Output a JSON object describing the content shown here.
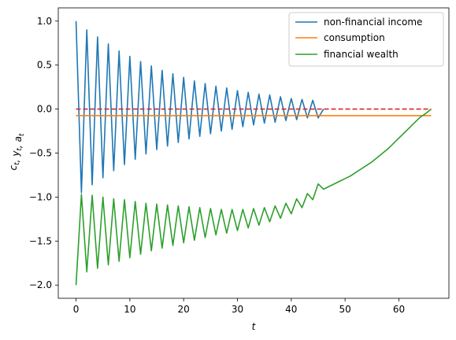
{
  "chart_data": {
    "type": "line",
    "xlabel": "t",
    "ylabel": "c_t, y_t, a_t",
    "xlim": [
      -3.3,
      69.3
    ],
    "ylim": [
      -2.15,
      1.15
    ],
    "x_ticks": [
      0,
      10,
      20,
      30,
      40,
      50,
      60
    ],
    "y_ticks": [
      1.0,
      0.5,
      0.0,
      -0.5,
      -1.0,
      -1.5,
      -2.0
    ],
    "y_tick_labels": [
      "1.0",
      "0.5",
      "0.0",
      "−0.5",
      "−1.0",
      "−1.5",
      "−2.0"
    ],
    "grid": false,
    "legend_position": "top-right",
    "series": [
      {
        "name": "non-financial income",
        "color": "#1f77b4",
        "x": [
          0,
          1,
          2,
          3,
          4,
          5,
          6,
          7,
          8,
          9,
          10,
          11,
          12,
          13,
          14,
          15,
          16,
          17,
          18,
          19,
          20,
          21,
          22,
          23,
          24,
          25,
          26,
          27,
          28,
          29,
          30,
          31,
          32,
          33,
          34,
          35,
          36,
          37,
          38,
          39,
          40,
          41,
          42,
          43,
          44,
          45,
          46
        ],
        "y": [
          1.0,
          -0.95,
          0.9,
          -0.86,
          0.82,
          -0.78,
          0.74,
          -0.7,
          0.66,
          -0.63,
          0.6,
          -0.57,
          0.54,
          -0.51,
          0.49,
          -0.46,
          0.44,
          -0.42,
          0.4,
          -0.38,
          0.36,
          -0.34,
          0.32,
          -0.31,
          0.29,
          -0.28,
          0.26,
          -0.25,
          0.24,
          -0.23,
          0.21,
          -0.2,
          0.19,
          -0.18,
          0.17,
          -0.16,
          0.16,
          -0.15,
          0.14,
          -0.13,
          0.12,
          -0.12,
          0.11,
          -0.1,
          0.1,
          -0.1,
          0.0
        ]
      },
      {
        "name": "consumption",
        "color": "#ff7f0e",
        "x": [
          0,
          66
        ],
        "y": [
          -0.075,
          -0.075
        ]
      },
      {
        "name": "financial wealth",
        "color": "#2ca02c",
        "x": [
          0,
          1,
          2,
          3,
          4,
          5,
          6,
          7,
          8,
          9,
          10,
          11,
          12,
          13,
          14,
          15,
          16,
          17,
          18,
          19,
          20,
          21,
          22,
          23,
          24,
          25,
          26,
          27,
          28,
          29,
          30,
          31,
          32,
          33,
          34,
          35,
          36,
          37,
          38,
          39,
          40,
          41,
          42,
          43,
          44,
          45,
          46,
          47,
          48,
          49,
          50,
          51,
          52,
          53,
          54,
          55,
          56,
          57,
          58,
          59,
          60,
          61,
          62,
          63,
          64,
          65,
          66
        ],
        "y": [
          -2.0,
          -0.97,
          -1.85,
          -0.98,
          -1.81,
          -1.0,
          -1.77,
          -1.02,
          -1.73,
          -1.03,
          -1.69,
          -1.05,
          -1.65,
          -1.07,
          -1.61,
          -1.08,
          -1.58,
          -1.09,
          -1.55,
          -1.1,
          -1.52,
          -1.11,
          -1.49,
          -1.12,
          -1.46,
          -1.13,
          -1.43,
          -1.14,
          -1.41,
          -1.14,
          -1.38,
          -1.14,
          -1.35,
          -1.13,
          -1.32,
          -1.12,
          -1.28,
          -1.1,
          -1.24,
          -1.07,
          -1.19,
          -1.02,
          -1.12,
          -0.96,
          -1.03,
          -0.85,
          -0.91,
          -0.88,
          -0.85,
          -0.82,
          -0.79,
          -0.76,
          -0.72,
          -0.68,
          -0.64,
          -0.6,
          -0.55,
          -0.5,
          -0.45,
          -0.39,
          -0.33,
          -0.27,
          -0.21,
          -0.15,
          -0.09,
          -0.05,
          0.0
        ]
      },
      {
        "name": "",
        "color": "#d62728",
        "dashed": true,
        "x": [
          0,
          66
        ],
        "y": [
          0.0,
          0.0
        ]
      }
    ]
  }
}
